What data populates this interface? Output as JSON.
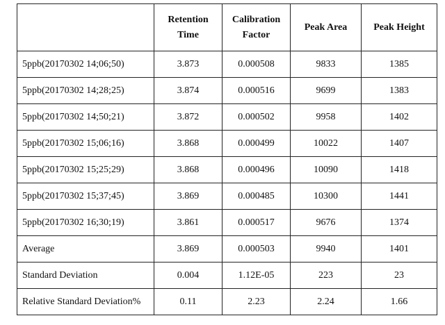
{
  "table": {
    "headers": [
      "",
      "Retention Time",
      "Calibration Factor",
      "Peak Area",
      "Peak Height"
    ],
    "headers_split": [
      [
        "",
        ""
      ],
      [
        "Retention",
        "Time"
      ],
      [
        "Calibration",
        "Factor"
      ],
      [
        "Peak Area",
        ""
      ],
      [
        "Peak Height",
        ""
      ]
    ],
    "rows": [
      [
        "5ppb(20170302 14;06;50)",
        "3.873",
        "0.000508",
        "9833",
        "1385"
      ],
      [
        "5ppb(20170302 14;28;25)",
        "3.874",
        "0.000516",
        "9699",
        "1383"
      ],
      [
        "5ppb(20170302 14;50;21)",
        "3.872",
        "0.000502",
        "9958",
        "1402"
      ],
      [
        "5ppb(20170302 15;06;16)",
        "3.868",
        "0.000499",
        "10022",
        "1407"
      ],
      [
        "5ppb(20170302 15;25;29)",
        "3.868",
        "0.000496",
        "10090",
        "1418"
      ],
      [
        "5ppb(20170302 15;37;45)",
        "3.869",
        "0.000485",
        "10300",
        "1441"
      ],
      [
        "5ppb(20170302 16;30;19)",
        "3.861",
        "0.000517",
        "9676",
        "1374"
      ],
      [
        "Average",
        "3.869",
        "0.000503",
        "9940",
        "1401"
      ],
      [
        "Standard Deviation",
        "0.004",
        "1.12E-05",
        "223",
        "23"
      ],
      [
        "Relative Standard Deviation%",
        "0.11",
        "2.23",
        "2.24",
        "1.66"
      ]
    ]
  }
}
